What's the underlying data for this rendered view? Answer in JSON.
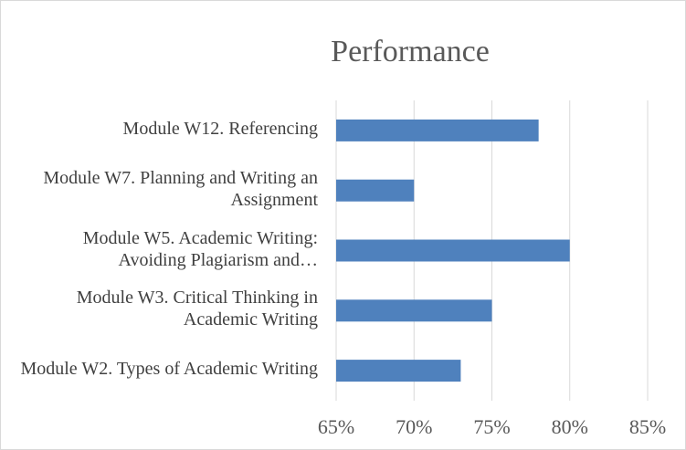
{
  "chart_data": {
    "type": "barh",
    "title": "Performance",
    "categories": [
      "Module W12. Referencing",
      "Module W7. Planning and Writing an Assignment",
      "Module W5. Academic Writing: Avoiding Plagiarism and…",
      "Module W3. Critical Thinking in Academic Writing",
      "Module W2. Types of Academic Writing"
    ],
    "values": [
      78,
      70,
      80,
      75,
      73
    ],
    "color": "#4f81bd",
    "xlim": [
      65,
      85
    ],
    "xticks": [
      {
        "value": 65,
        "label": "65%"
      },
      {
        "value": 70,
        "label": "70%"
      },
      {
        "value": 75,
        "label": "75%"
      },
      {
        "value": 80,
        "label": "80%"
      },
      {
        "value": 85,
        "label": "85%"
      }
    ],
    "grid": true
  }
}
